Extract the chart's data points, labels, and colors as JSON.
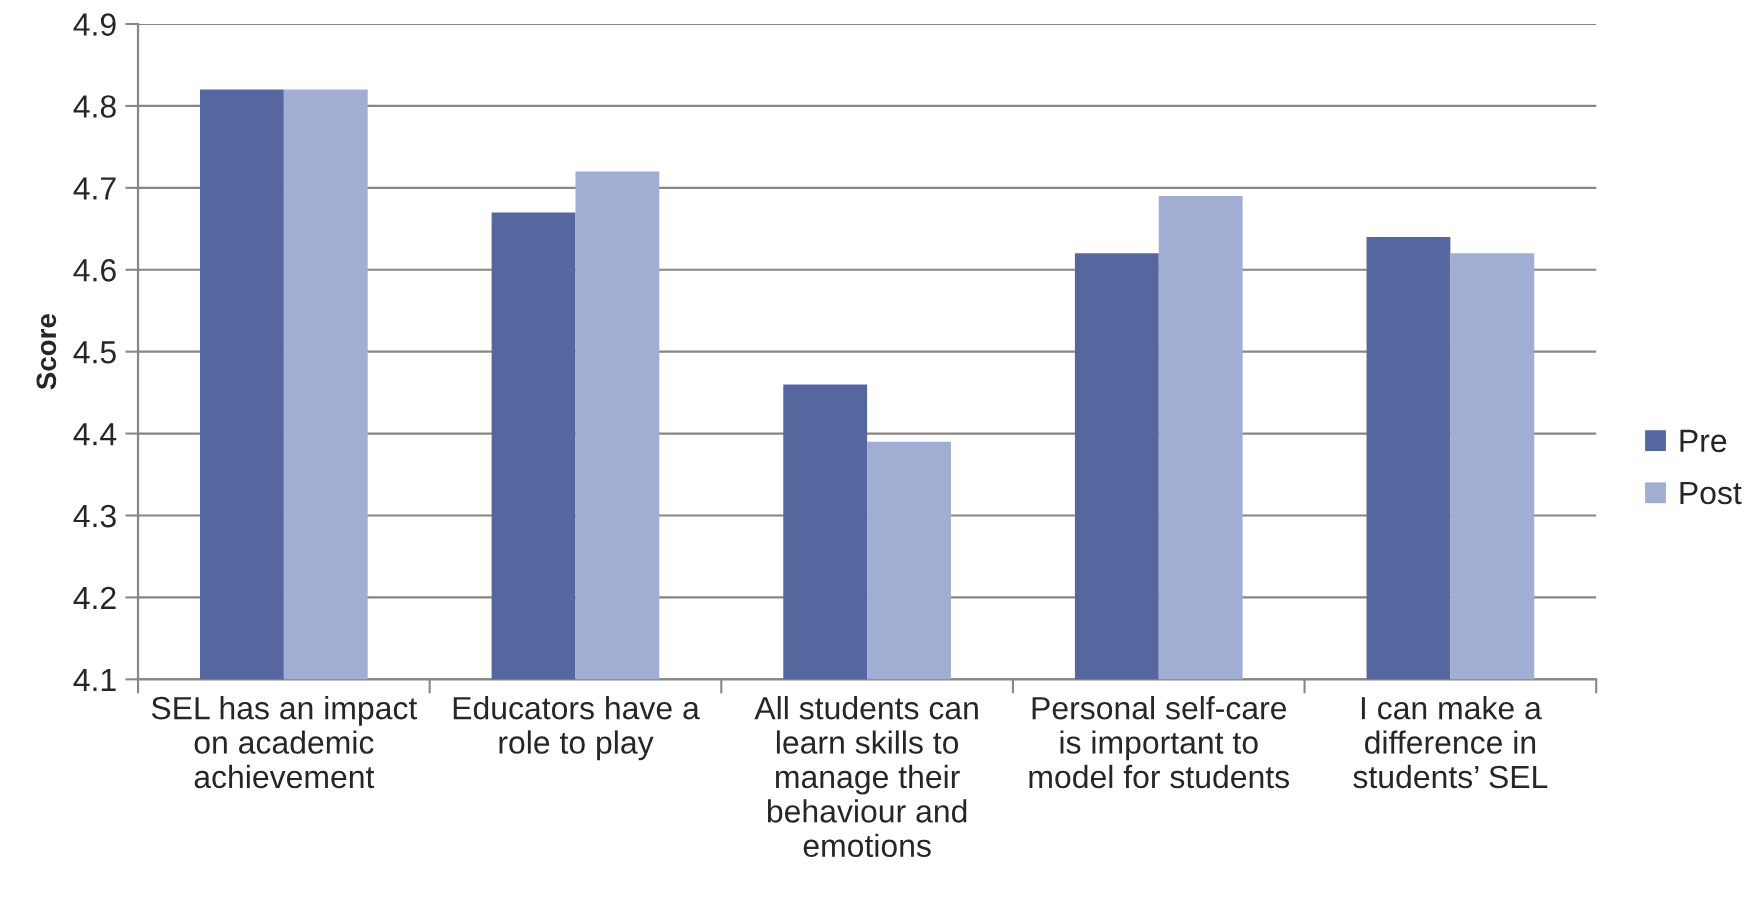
{
  "chart_data": {
    "type": "bar",
    "ylabel": "Score",
    "categories": [
      "SEL has an impact on academic achievement",
      "Educators have a role to play",
      "All students can learn skills to manage their behaviour and emotions",
      "Personal self-care is important to model for students",
      "I can make a difference in students’ SEL"
    ],
    "series": [
      {
        "name": "Pre",
        "color": "#55679e",
        "values": [
          4.82,
          4.67,
          4.46,
          4.62,
          4.64
        ]
      },
      {
        "name": "Post",
        "color": "#a0aed4",
        "values": [
          4.82,
          4.72,
          4.39,
          4.69,
          4.62
        ]
      }
    ],
    "ylim": [
      4.1,
      4.9
    ],
    "yticks": [
      4.1,
      4.2,
      4.3,
      4.4,
      4.5,
      4.6,
      4.7,
      4.8,
      4.9
    ],
    "grid": "y",
    "legend": "right"
  }
}
